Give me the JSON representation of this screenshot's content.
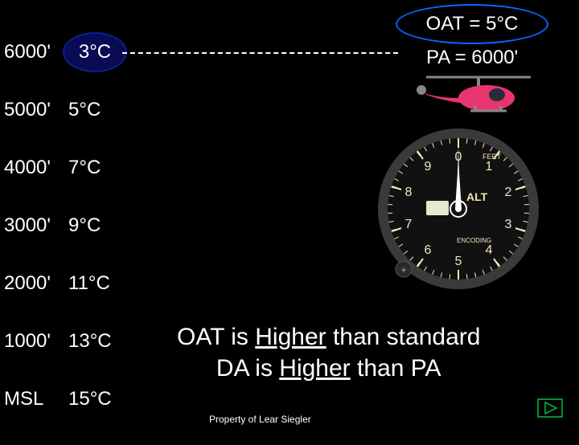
{
  "altitude_table": {
    "rows": [
      {
        "alt": "6000'",
        "temp": "3°C"
      },
      {
        "alt": "5000'",
        "temp": "5°C"
      },
      {
        "alt": "4000'",
        "temp": "7°C"
      },
      {
        "alt": "3000'",
        "temp": "9°C"
      },
      {
        "alt": "2000'",
        "temp": "11°C"
      },
      {
        "alt": "1000'",
        "temp": "13°C"
      },
      {
        "alt": "MSL",
        "temp": "15°C"
      }
    ],
    "text_color": "#ffffff",
    "font_size": 24
  },
  "oat_ellipse": {
    "text": "OAT = 5°C",
    "border_color": "#0a66ff",
    "bg_color": "#000000",
    "text_color": "#ffffff"
  },
  "pa_text": "PA = 6000'",
  "temp_highlight": {
    "text": "3°C",
    "bg_color": "#0a0a55",
    "border_color": "#0a2288"
  },
  "helicopter": {
    "body_color": "#e8356f",
    "accent_color": "#888888"
  },
  "altimeter": {
    "face_color": "#1a1a1a",
    "ring_color": "#3a3a3a",
    "numeral_color": "#f5e6b8",
    "label_alt": "ALT",
    "label_feet": "FEET",
    "label_encoding": "ENCODING",
    "numerals": [
      "0",
      "1",
      "2",
      "3",
      "4",
      "5",
      "6",
      "7",
      "8",
      "9"
    ],
    "hand_100_angle": 0,
    "hand_1000_angle": 0,
    "kollsman_bg": "#e8e8d0",
    "center_ring_color": "#ffffff"
  },
  "main_statement": {
    "line1_pre": "OAT is ",
    "line1_u": "Higher",
    "line1_post": " than standard",
    "line2_pre": "DA is ",
    "line2_u": "Higher",
    "line2_post": " than PA",
    "font_size": 30,
    "text_color": "#ffffff"
  },
  "footer": "Property of Lear Siegler",
  "nav_arrow": {
    "stroke_color": "#00c040",
    "fill_color": "none"
  },
  "background_color": "#000000"
}
